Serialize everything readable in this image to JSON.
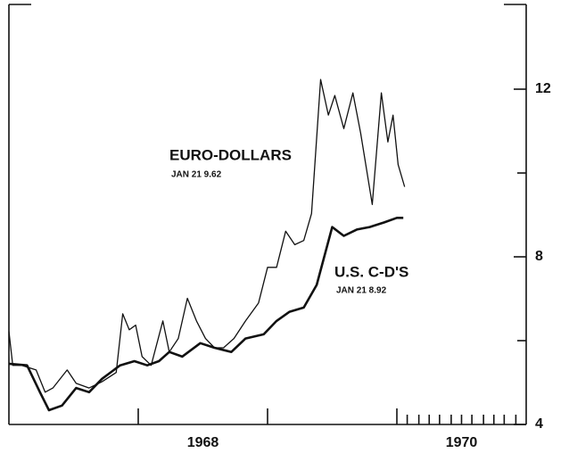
{
  "chart_data": {
    "type": "line",
    "annotations": [
      "EURO-DOLLARS",
      "JAN 21 9.62",
      "U.S. C-D'S",
      "JAN 21 8.92"
    ],
    "xlim": [
      1967,
      1971
    ],
    "xticks": [
      {
        "value": 1968.5,
        "label": "1968"
      },
      {
        "value": 1970.5,
        "label": "1970"
      }
    ],
    "x_major_marks": [
      1968,
      1969,
      1970
    ],
    "x_minor_marks": [
      1970.08,
      1970.17,
      1970.25,
      1970.33,
      1970.42,
      1970.5,
      1970.58,
      1970.67,
      1970.75,
      1970.83,
      1970.92
    ],
    "ylim": [
      4,
      14
    ],
    "yticks": [
      4,
      8,
      12
    ],
    "y_minor_marks": [
      6,
      10
    ],
    "y_axis_side": "right",
    "grid": false,
    "series": [
      {
        "name": "EURO-DOLLARS",
        "color": "#111111",
        "x": [
          1967.0,
          1967.03,
          1967.1,
          1967.21,
          1967.28,
          1967.34,
          1967.45,
          1967.52,
          1967.62,
          1967.72,
          1967.83,
          1967.88,
          1967.93,
          1967.98,
          1968.03,
          1968.1,
          1968.19,
          1968.24,
          1968.31,
          1968.38,
          1968.45,
          1968.52,
          1968.59,
          1968.66,
          1968.74,
          1968.83,
          1968.93,
          1969.0,
          1969.07,
          1969.14,
          1969.21,
          1969.28,
          1969.34,
          1969.41,
          1969.47,
          1969.52,
          1969.59,
          1969.66,
          1969.72,
          1969.81,
          1969.88,
          1969.93,
          1969.97,
          1970.01,
          1970.06
        ],
        "values": [
          6.22,
          5.41,
          5.41,
          5.3,
          4.77,
          4.87,
          5.3,
          4.98,
          4.87,
          5.02,
          5.24,
          6.64,
          6.26,
          6.37,
          5.62,
          5.41,
          6.47,
          5.73,
          6.05,
          7.01,
          6.47,
          6.05,
          5.83,
          5.83,
          6.05,
          6.47,
          6.9,
          7.75,
          7.75,
          8.61,
          8.29,
          8.39,
          9.03,
          12.23,
          11.38,
          11.85,
          11.06,
          11.91,
          10.95,
          9.25,
          11.91,
          10.74,
          11.38,
          10.2,
          9.67
        ]
      },
      {
        "name": "U.S. C-D'S",
        "color": "#111111",
        "x": [
          1967.0,
          1967.14,
          1967.24,
          1967.31,
          1967.41,
          1967.52,
          1967.62,
          1967.72,
          1967.86,
          1967.97,
          1968.07,
          1968.16,
          1968.24,
          1968.34,
          1968.48,
          1968.59,
          1968.72,
          1968.83,
          1968.97,
          1969.07,
          1969.17,
          1969.28,
          1969.38,
          1969.5,
          1969.59,
          1969.69,
          1969.79,
          1969.9,
          1970.0,
          1970.05
        ],
        "values": [
          5.45,
          5.41,
          4.77,
          4.34,
          4.45,
          4.87,
          4.77,
          5.09,
          5.41,
          5.51,
          5.41,
          5.51,
          5.73,
          5.62,
          5.94,
          5.83,
          5.73,
          6.05,
          6.15,
          6.47,
          6.69,
          6.79,
          7.33,
          8.71,
          8.5,
          8.65,
          8.71,
          8.82,
          8.93,
          8.93
        ]
      }
    ]
  }
}
